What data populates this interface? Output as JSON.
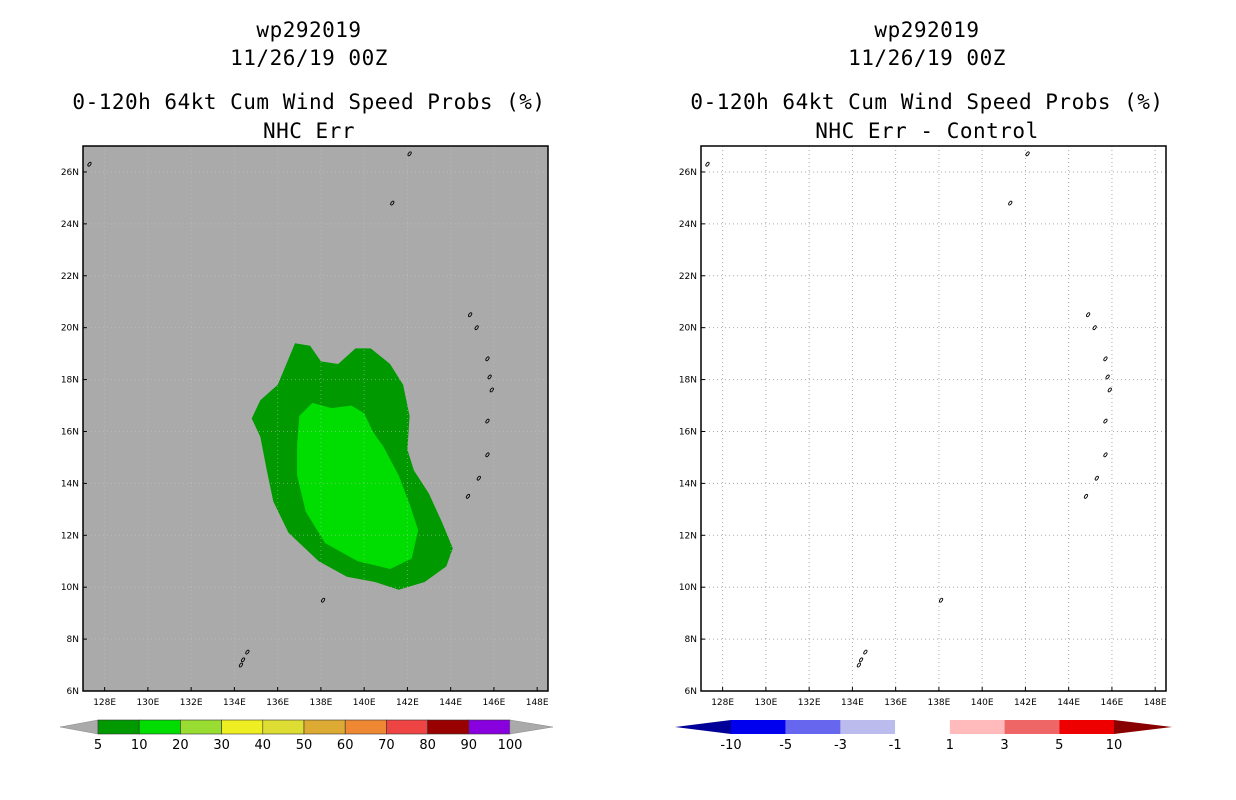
{
  "chart_data": [
    {
      "type": "filled-contour-map",
      "storm_id": "wp292019",
      "date": "11/26/19 00Z",
      "title": "0-120h 64kt Cum Wind Speed Probs (%)",
      "subtitle": "NHC Err",
      "background_color": "#aaaaaa",
      "lon_range": [
        127,
        148.5
      ],
      "lat_range": [
        6,
        27
      ],
      "x_ticks": [
        "128E",
        "130E",
        "132E",
        "134E",
        "136E",
        "138E",
        "140E",
        "142E",
        "144E",
        "146E",
        "148E"
      ],
      "y_ticks": [
        "6N",
        "8N",
        "10N",
        "12N",
        "14N",
        "16N",
        "18N",
        "20N",
        "22N",
        "24N",
        "26N"
      ],
      "colorbar": {
        "labels": [
          "5",
          "10",
          "20",
          "30",
          "40",
          "50",
          "60",
          "70",
          "80",
          "90",
          "100"
        ],
        "colors": [
          "#009900",
          "#00dd00",
          "#99dd33",
          "#eeee22",
          "#dddd33",
          "#ddaa33",
          "#ee8833",
          "#ee4444",
          "#990000",
          "#8800dd"
        ],
        "under_color": "#aaaaaa",
        "over_color": "#aaaaaa"
      },
      "contours": [
        {
          "level": "5-10",
          "color": "#009900",
          "polygon_lonlat": [
            [
              136.0,
              17.8
            ],
            [
              136.8,
              19.4
            ],
            [
              137.5,
              19.3
            ],
            [
              138.0,
              18.7
            ],
            [
              138.8,
              18.6
            ],
            [
              139.6,
              19.2
            ],
            [
              140.3,
              19.2
            ],
            [
              141.2,
              18.6
            ],
            [
              141.8,
              17.8
            ],
            [
              142.1,
              16.6
            ],
            [
              142.0,
              15.3
            ],
            [
              142.3,
              14.5
            ],
            [
              143.0,
              13.6
            ],
            [
              143.6,
              12.5
            ],
            [
              144.1,
              11.5
            ],
            [
              143.8,
              10.8
            ],
            [
              142.8,
              10.2
            ],
            [
              141.6,
              9.9
            ],
            [
              140.5,
              10.2
            ],
            [
              139.2,
              10.4
            ],
            [
              137.9,
              11.0
            ],
            [
              136.5,
              12.1
            ],
            [
              135.8,
              13.3
            ],
            [
              135.5,
              14.5
            ],
            [
              135.2,
              15.8
            ],
            [
              134.8,
              16.5
            ],
            [
              135.2,
              17.2
            ]
          ]
        },
        {
          "level": "10-20",
          "color": "#00dd00",
          "polygon_lonlat": [
            [
              137.0,
              16.6
            ],
            [
              137.6,
              17.1
            ],
            [
              138.5,
              16.9
            ],
            [
              139.4,
              17.0
            ],
            [
              140.0,
              16.7
            ],
            [
              140.4,
              16.0
            ],
            [
              140.9,
              15.4
            ],
            [
              141.6,
              14.3
            ],
            [
              142.1,
              13.2
            ],
            [
              142.5,
              12.2
            ],
            [
              142.2,
              11.1
            ],
            [
              141.2,
              10.7
            ],
            [
              139.7,
              11.0
            ],
            [
              138.2,
              11.7
            ],
            [
              137.3,
              12.9
            ],
            [
              136.9,
              14.3
            ],
            [
              136.9,
              15.5
            ]
          ]
        }
      ],
      "annotations": []
    },
    {
      "type": "filled-contour-map",
      "storm_id": "wp292019",
      "date": "11/26/19 00Z",
      "title": "0-120h 64kt Cum Wind Speed Probs (%)",
      "subtitle": "NHC Err - Control",
      "background_color": "#ffffff",
      "lon_range": [
        127,
        148.5
      ],
      "lat_range": [
        6,
        27
      ],
      "x_ticks": [
        "128E",
        "130E",
        "132E",
        "134E",
        "136E",
        "138E",
        "140E",
        "142E",
        "144E",
        "146E",
        "148E"
      ],
      "y_ticks": [
        "6N",
        "8N",
        "10N",
        "12N",
        "14N",
        "16N",
        "18N",
        "20N",
        "22N",
        "24N",
        "26N"
      ],
      "grid": true,
      "colorbar": {
        "labels": [
          "-10",
          "-5",
          "-3",
          "-1",
          "1",
          "3",
          "5",
          "10"
        ],
        "colors": [
          "#0000ee",
          "#6666ee",
          "#bbbbee",
          "#ffffff",
          "#ffbbbb",
          "#ee6666",
          "#ee0000"
        ],
        "under_color": "#000099",
        "over_color": "#880000"
      },
      "contours": []
    }
  ],
  "islands_lonlat": [
    [
      127.3,
      26.3
    ],
    [
      142.1,
      26.7
    ],
    [
      141.3,
      24.8
    ],
    [
      144.9,
      20.5
    ],
    [
      145.2,
      20.0
    ],
    [
      145.7,
      18.8
    ],
    [
      145.8,
      18.1
    ],
    [
      145.9,
      17.6
    ],
    [
      145.7,
      16.4
    ],
    [
      145.7,
      15.1
    ],
    [
      145.3,
      14.2
    ],
    [
      144.8,
      13.5
    ],
    [
      138.1,
      9.5
    ],
    [
      134.6,
      7.5
    ],
    [
      134.4,
      7.2
    ],
    [
      134.3,
      7.0
    ]
  ]
}
